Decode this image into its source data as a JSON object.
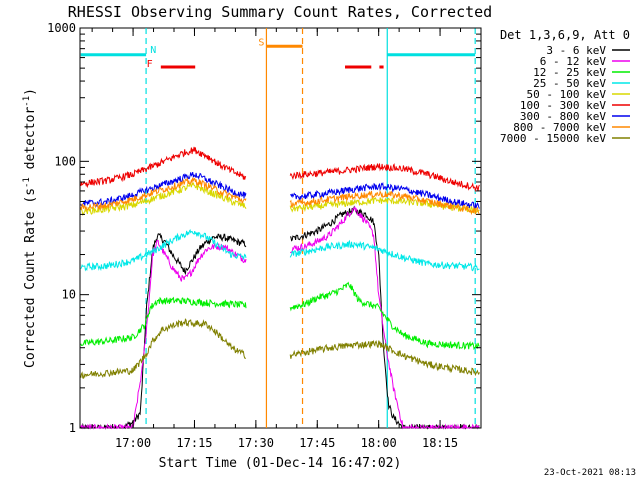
{
  "chart_data": {
    "type": "line",
    "title": "RHESSI Observing Summary Count Rates, Corrected",
    "xlabel": "Start Time (01-Dec-14 16:47:02)",
    "ylabel": "Corrected Count Rate (s⁻¹ detector⁻¹)",
    "ylabel_parts": [
      "Corrected Count Rate (s",
      "-1",
      " detector",
      "-1",
      ")"
    ],
    "footer": "23-Oct-2021 08:13",
    "xscale": "linear",
    "yscale": "log",
    "xlim": [
      16.7839,
      18.4167
    ],
    "ylim": [
      1,
      1000
    ],
    "x_tick_labels": [
      {
        "x": 17.0,
        "label": "17:00"
      },
      {
        "x": 17.25,
        "label": "17:15"
      },
      {
        "x": 17.5,
        "label": "17:30"
      },
      {
        "x": 17.75,
        "label": "17:45"
      },
      {
        "x": 18.0,
        "label": "18:00"
      },
      {
        "x": 18.25,
        "label": "18:15"
      }
    ],
    "y_tick_labels": [
      {
        "y": 1,
        "label": "1"
      },
      {
        "y": 10,
        "label": "10"
      },
      {
        "y": 100,
        "label": "100"
      },
      {
        "y": 1000,
        "label": "1000"
      }
    ],
    "legend": {
      "placement": "right",
      "header": "Det 1,3,6,9, Att 0",
      "entries": [
        {
          "label": "3 - 6 keV",
          "color": "#000000"
        },
        {
          "label": "6 - 12 keV",
          "color": "#ee00ee"
        },
        {
          "label": "12 - 25 keV",
          "color": "#00ee00"
        },
        {
          "label": "25 - 50 keV",
          "color": "#00e8e8"
        },
        {
          "label": "50 - 100 keV",
          "color": "#d8d800"
        },
        {
          "label": "100 - 300 keV",
          "color": "#ee0000"
        },
        {
          "label": "300 - 800 keV",
          "color": "#0000ee"
        },
        {
          "label": "800 - 7000 keV",
          "color": "#ff8800"
        },
        {
          "label": "7000 - 15000 keV",
          "color": "#808000"
        }
      ]
    },
    "series": [
      {
        "name": "3 - 6 keV",
        "color": "#000000",
        "segments": [
          [
            [
              16.787,
              1
            ],
            [
              16.95,
              1
            ],
            [
              17.0,
              1.1
            ],
            [
              17.03,
              1.3
            ],
            [
              17.055,
              8
            ],
            [
              17.08,
              22
            ],
            [
              17.1,
              28
            ],
            [
              17.13,
              25
            ],
            [
              17.16,
              20
            ],
            [
              17.19,
              17
            ],
            [
              17.21,
              15
            ],
            [
              17.24,
              18
            ],
            [
              17.27,
              22
            ],
            [
              17.3,
              25
            ],
            [
              17.33,
              27
            ],
            [
              17.37,
              27
            ],
            [
              17.42,
              25
            ],
            [
              17.46,
              24
            ]
          ],
          [
            [
              17.64,
              26
            ],
            [
              17.7,
              28
            ],
            [
              17.75,
              30
            ],
            [
              17.8,
              34
            ],
            [
              17.85,
              40
            ],
            [
              17.9,
              43
            ],
            [
              17.95,
              40
            ],
            [
              17.98,
              35
            ],
            [
              18.0,
              20
            ],
            [
              18.02,
              4
            ],
            [
              18.04,
              1.5
            ],
            [
              18.06,
              1.2
            ],
            [
              18.1,
              1
            ],
            [
              18.41,
              1
            ]
          ]
        ]
      },
      {
        "name": "6 - 12 keV",
        "color": "#ee00ee",
        "segments": [
          [
            [
              16.787,
              1
            ],
            [
              17.0,
              1
            ],
            [
              17.04,
              3
            ],
            [
              17.06,
              7
            ],
            [
              17.08,
              20
            ],
            [
              17.1,
              25
            ],
            [
              17.13,
              20
            ],
            [
              17.16,
              16
            ],
            [
              17.19,
              13.5
            ],
            [
              17.21,
              13
            ],
            [
              17.24,
              15
            ],
            [
              17.27,
              19
            ],
            [
              17.3,
              22
            ],
            [
              17.33,
              23
            ],
            [
              17.37,
              23
            ],
            [
              17.42,
              20
            ],
            [
              17.46,
              18
            ]
          ],
          [
            [
              17.64,
              22
            ],
            [
              17.7,
              23
            ],
            [
              17.75,
              25
            ],
            [
              17.8,
              28
            ],
            [
              17.85,
              35
            ],
            [
              17.9,
              45
            ],
            [
              17.95,
              35
            ],
            [
              17.98,
              28
            ],
            [
              18.0,
              10
            ],
            [
              18.03,
              4
            ],
            [
              18.06,
              2
            ],
            [
              18.1,
              1
            ],
            [
              18.41,
              1
            ]
          ]
        ]
      },
      {
        "name": "12 - 25 keV",
        "color": "#00ee00",
        "segments": [
          [
            [
              16.787,
              4.3
            ],
            [
              16.9,
              4.5
            ],
            [
              17.0,
              4.8
            ],
            [
              17.05,
              6
            ],
            [
              17.07,
              8
            ],
            [
              17.1,
              9
            ],
            [
              17.2,
              9
            ],
            [
              17.3,
              8.7
            ],
            [
              17.4,
              8.5
            ],
            [
              17.46,
              8.3
            ]
          ],
          [
            [
              17.64,
              8
            ],
            [
              17.7,
              8.5
            ],
            [
              17.75,
              9.5
            ],
            [
              17.8,
              10
            ],
            [
              17.85,
              11
            ],
            [
              17.88,
              12
            ],
            [
              17.92,
              9
            ],
            [
              18.0,
              8
            ],
            [
              18.05,
              6
            ],
            [
              18.1,
              5
            ],
            [
              18.2,
              4.3
            ],
            [
              18.3,
              4.2
            ],
            [
              18.41,
              4.1
            ]
          ]
        ]
      },
      {
        "name": "25 - 50 keV",
        "color": "#00e8e8",
        "segments": [
          [
            [
              16.787,
              16
            ],
            [
              16.9,
              16.5
            ],
            [
              17.0,
              18
            ],
            [
              17.08,
              21
            ],
            [
              17.15,
              25
            ],
            [
              17.2,
              28
            ],
            [
              17.25,
              30
            ],
            [
              17.3,
              27
            ],
            [
              17.35,
              23
            ],
            [
              17.4,
              20
            ],
            [
              17.46,
              19
            ]
          ],
          [
            [
              17.64,
              20
            ],
            [
              17.7,
              21
            ],
            [
              17.8,
              23
            ],
            [
              17.9,
              24
            ],
            [
              18.0,
              22
            ],
            [
              18.1,
              19
            ],
            [
              18.2,
              17
            ],
            [
              18.3,
              16.5
            ],
            [
              18.41,
              16
            ]
          ]
        ]
      },
      {
        "name": "50 - 100 keV",
        "color": "#d8d800",
        "segments": [
          [
            [
              16.787,
              42
            ],
            [
              16.9,
              44
            ],
            [
              17.0,
              47
            ],
            [
              17.1,
              54
            ],
            [
              17.2,
              62
            ],
            [
              17.25,
              66
            ],
            [
              17.3,
              60
            ],
            [
              17.35,
              55
            ],
            [
              17.4,
              50
            ],
            [
              17.46,
              46
            ]
          ],
          [
            [
              17.64,
              44
            ],
            [
              17.7,
              45
            ],
            [
              17.8,
              47
            ],
            [
              17.9,
              49
            ],
            [
              18.0,
              51
            ],
            [
              18.1,
              50
            ],
            [
              18.2,
              48
            ],
            [
              18.3,
              45
            ],
            [
              18.41,
              43
            ]
          ]
        ]
      },
      {
        "name": "100 - 300 keV",
        "color": "#ee0000",
        "segments": [
          [
            [
              16.787,
              68
            ],
            [
              16.9,
              72
            ],
            [
              17.0,
              80
            ],
            [
              17.1,
              95
            ],
            [
              17.2,
              115
            ],
            [
              17.25,
              122
            ],
            [
              17.3,
              110
            ],
            [
              17.35,
              95
            ],
            [
              17.4,
              85
            ],
            [
              17.46,
              75
            ]
          ],
          [
            [
              17.64,
              78
            ],
            [
              17.7,
              80
            ],
            [
              17.8,
              83
            ],
            [
              17.9,
              87
            ],
            [
              18.0,
              92
            ],
            [
              18.1,
              88
            ],
            [
              18.2,
              80
            ],
            [
              18.3,
              70
            ],
            [
              18.41,
              63
            ]
          ]
        ]
      },
      {
        "name": "300 - 800 keV",
        "color": "#0000ee",
        "segments": [
          [
            [
              16.787,
              48
            ],
            [
              16.9,
              50
            ],
            [
              17.0,
              56
            ],
            [
              17.1,
              65
            ],
            [
              17.2,
              75
            ],
            [
              17.25,
              80
            ],
            [
              17.3,
              73
            ],
            [
              17.35,
              66
            ],
            [
              17.4,
              60
            ],
            [
              17.46,
              55
            ]
          ],
          [
            [
              17.64,
              54
            ],
            [
              17.7,
              55
            ],
            [
              17.8,
              58
            ],
            [
              17.9,
              62
            ],
            [
              18.0,
              65
            ],
            [
              18.1,
              62
            ],
            [
              18.2,
              56
            ],
            [
              18.3,
              50
            ],
            [
              18.41,
              46
            ]
          ]
        ]
      },
      {
        "name": "800 - 7000 keV",
        "color": "#ff8800",
        "segments": [
          [
            [
              16.787,
              45
            ],
            [
              16.9,
              47
            ],
            [
              17.0,
              52
            ],
            [
              17.1,
              60
            ],
            [
              17.2,
              68
            ],
            [
              17.25,
              72
            ],
            [
              17.3,
              66
            ],
            [
              17.35,
              60
            ],
            [
              17.4,
              55
            ],
            [
              17.46,
              50
            ]
          ],
          [
            [
              17.64,
              48
            ],
            [
              17.7,
              49
            ],
            [
              17.8,
              52
            ],
            [
              17.9,
              55
            ],
            [
              18.0,
              57
            ],
            [
              18.1,
              55
            ],
            [
              18.2,
              50
            ],
            [
              18.3,
              46
            ],
            [
              18.41,
              42
            ]
          ]
        ]
      },
      {
        "name": "7000 - 15000 keV",
        "color": "#808000",
        "segments": [
          [
            [
              16.787,
              2.5
            ],
            [
              16.9,
              2.6
            ],
            [
              17.0,
              2.7
            ],
            [
              17.05,
              3.5
            ],
            [
              17.08,
              4.5
            ],
            [
              17.12,
              5.5
            ],
            [
              17.2,
              6.2
            ],
            [
              17.3,
              6
            ],
            [
              17.35,
              5
            ],
            [
              17.4,
              4
            ],
            [
              17.46,
              3.5
            ]
          ],
          [
            [
              17.64,
              3.5
            ],
            [
              17.7,
              3.7
            ],
            [
              17.8,
              4
            ],
            [
              17.9,
              4.2
            ],
            [
              18.0,
              4.3
            ],
            [
              18.1,
              3.5
            ],
            [
              18.2,
              3
            ],
            [
              18.3,
              2.8
            ],
            [
              18.41,
              2.6
            ]
          ]
        ]
      }
    ],
    "annotations": {
      "vertical_lines": [
        {
          "x": 17.053,
          "color": "#00e0e0",
          "style": "dashed"
        },
        {
          "x": 17.543,
          "color": "#ff8800",
          "style": "solid"
        },
        {
          "x": 17.69,
          "color": "#ff8800",
          "style": "dashed"
        },
        {
          "x": 18.035,
          "color": "#00e0e0",
          "style": "solid"
        },
        {
          "x": 18.393,
          "color": "#00e0e0",
          "style": "dashed"
        }
      ],
      "bars": [
        {
          "label": "",
          "color": "#00e0e0",
          "x_start": 16.787,
          "x_end": 17.053,
          "y": 630
        },
        {
          "label": "",
          "color": "#00e0e0",
          "x_start": 18.035,
          "x_end": 18.393,
          "y": 630
        },
        {
          "label": "",
          "color": "#ff8800",
          "x_start": 17.543,
          "x_end": 17.69,
          "y": 730
        },
        {
          "label": "",
          "color": "#ee0000",
          "x_start": 17.113,
          "x_end": 17.253,
          "y": 510
        },
        {
          "label": "",
          "color": "#ee0000",
          "x_start": 17.863,
          "x_end": 17.97,
          "y": 510
        },
        {
          "label": "",
          "color": "#ee0000",
          "x_start": 18.003,
          "x_end": 18.02,
          "y": 510
        }
      ],
      "text": [
        {
          "label": "N",
          "color": "#00e0e0",
          "x": 17.07,
          "y": 650
        },
        {
          "label": "S",
          "color": "#ff8800",
          "x": 17.51,
          "y": 740
        },
        {
          "label": "F",
          "color": "#ee0000",
          "x": 17.055,
          "y": 510
        }
      ]
    }
  }
}
